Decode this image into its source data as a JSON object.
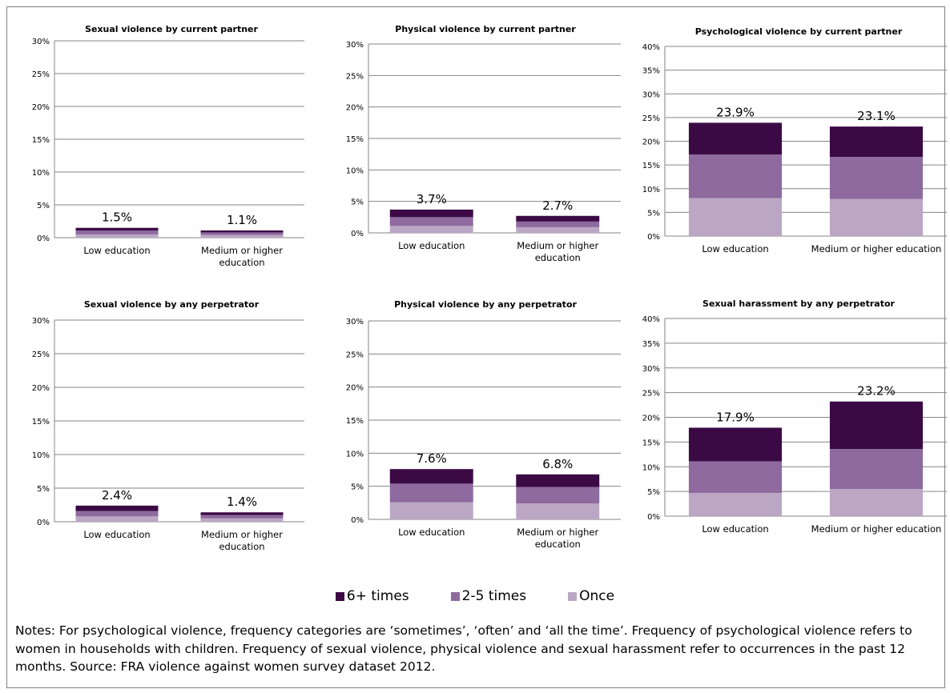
{
  "colors": {
    "six_plus": "#3b0a45",
    "two_five": "#8e6a9e",
    "once": "#bba7c4",
    "grid": "#868686"
  },
  "legend": {
    "six_plus": "6+ times",
    "two_five": "2-5 times",
    "once": "Once"
  },
  "notes": "Notes: For psychological violence, frequency categories are ‘sometimes’, ‘often’ and ‘all the time’. Frequency of psychological violence refers to women in households with children. Frequency of sexual violence, physical violence and sexual harassment refer to occurrences in the past 12 months. Source: FRA violence against women survey dataset 2012.",
  "chart_data": [
    {
      "type": "bar",
      "stacked": true,
      "title": "Sexual violence by current partner",
      "categories": [
        "Low education",
        "Medium or higher education"
      ],
      "ylim": [
        0,
        30
      ],
      "yticks": [
        "0%",
        "5%",
        "10%",
        "15%",
        "20%",
        "25%",
        "30%"
      ],
      "series": [
        {
          "name": "Once",
          "values": [
            0.5,
            0.4
          ]
        },
        {
          "name": "2-5 times",
          "values": [
            0.6,
            0.4
          ]
        },
        {
          "name": "6+ times",
          "values": [
            0.4,
            0.3
          ]
        }
      ],
      "totals": [
        "1.5%",
        "1.1%"
      ]
    },
    {
      "type": "bar",
      "stacked": true,
      "title": "Physical violence by current partner",
      "categories": [
        "Low education",
        "Medium or higher education"
      ],
      "ylim": [
        0,
        30
      ],
      "yticks": [
        "0%",
        "5%",
        "10%",
        "15%",
        "20%",
        "25%",
        "30%"
      ],
      "series": [
        {
          "name": "Once",
          "values": [
            1.1,
            0.9
          ]
        },
        {
          "name": "2-5 times",
          "values": [
            1.4,
            0.9
          ]
        },
        {
          "name": "6+ times",
          "values": [
            1.2,
            0.9
          ]
        }
      ],
      "totals": [
        "3.7%",
        "2.7%"
      ]
    },
    {
      "type": "bar",
      "stacked": true,
      "title": "Psychological violence by current partner",
      "categories": [
        "Low education",
        "Medium or higher education"
      ],
      "ylim": [
        0,
        40
      ],
      "yticks": [
        "0%",
        "5%",
        "10%",
        "15%",
        "20%",
        "25%",
        "30%",
        "35%",
        "40%"
      ],
      "series": [
        {
          "name": "Once",
          "values": [
            8.0,
            7.8
          ]
        },
        {
          "name": "2-5 times",
          "values": [
            9.2,
            8.9
          ]
        },
        {
          "name": "6+ times",
          "values": [
            6.7,
            6.4
          ]
        }
      ],
      "totals": [
        "23.9%",
        "23.1%"
      ]
    },
    {
      "type": "bar",
      "stacked": true,
      "title": "Sexual violence by any perpetrator",
      "categories": [
        "Low education",
        "Medium or higher education"
      ],
      "ylim": [
        0,
        30
      ],
      "yticks": [
        "0%",
        "5%",
        "10%",
        "15%",
        "20%",
        "25%",
        "30%"
      ],
      "series": [
        {
          "name": "Once",
          "values": [
            0.8,
            0.5
          ]
        },
        {
          "name": "2-5 times",
          "values": [
            0.8,
            0.5
          ]
        },
        {
          "name": "6+ times",
          "values": [
            0.8,
            0.4
          ]
        }
      ],
      "totals": [
        "2.4%",
        "1.4%"
      ]
    },
    {
      "type": "bar",
      "stacked": true,
      "title": "Physical violence by any perpetrator",
      "categories": [
        "Low education",
        "Medium or higher education"
      ],
      "ylim": [
        0,
        30
      ],
      "yticks": [
        "0%",
        "5%",
        "10%",
        "15%",
        "20%",
        "25%",
        "30%"
      ],
      "series": [
        {
          "name": "Once",
          "values": [
            2.6,
            2.4
          ]
        },
        {
          "name": "2-5 times",
          "values": [
            2.8,
            2.5
          ]
        },
        {
          "name": "6+ times",
          "values": [
            2.2,
            1.9
          ]
        }
      ],
      "totals": [
        "7.6%",
        "6.8%"
      ]
    },
    {
      "type": "bar",
      "stacked": true,
      "title": "Sexual harassment by any perpetrator",
      "categories": [
        "Low education",
        "Medium or higher education"
      ],
      "ylim": [
        0,
        40
      ],
      "yticks": [
        "0%",
        "5%",
        "10%",
        "15%",
        "20%",
        "25%",
        "30%",
        "35%",
        "40%"
      ],
      "series": [
        {
          "name": "Once",
          "values": [
            4.7,
            5.5
          ]
        },
        {
          "name": "2-5 times",
          "values": [
            6.4,
            8.1
          ]
        },
        {
          "name": "6+ times",
          "values": [
            6.8,
            9.6
          ]
        }
      ],
      "totals": [
        "17.9%",
        "23.2%"
      ]
    }
  ]
}
